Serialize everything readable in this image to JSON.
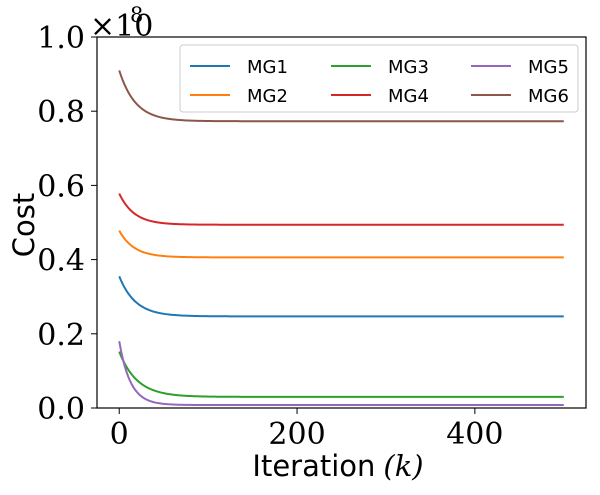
{
  "chart_data": {
    "type": "line",
    "xlabel": "Iteration",
    "xlabel_math": "(k)",
    "ylabel": "Cost",
    "y_multiplier": "×10",
    "y_multiplier_exponent": "8",
    "xlim": [
      -25,
      525
    ],
    "ylim": [
      0.0,
      1.0
    ],
    "x_ticks": [
      0,
      200,
      400
    ],
    "x_tick_labels": [
      "0",
      "200",
      "400"
    ],
    "y_ticks": [
      0.0,
      0.2,
      0.4,
      0.6,
      0.8,
      1.0
    ],
    "y_tick_labels": [
      "0.0",
      "0.2",
      "0.4",
      "0.6",
      "0.8",
      "1.0"
    ],
    "legend_position": "top-right",
    "series": [
      {
        "name": "MG1",
        "color": "#1f77b4",
        "start": 0.355,
        "final": 0.247,
        "rate": 0.055
      },
      {
        "name": "MG2",
        "color": "#ff7f0e",
        "start": 0.478,
        "final": 0.406,
        "rate": 0.06
      },
      {
        "name": "MG3",
        "color": "#2ca02c",
        "start": 0.152,
        "final": 0.03,
        "rate": 0.05
      },
      {
        "name": "MG4",
        "color": "#d62728",
        "start": 0.578,
        "final": 0.494,
        "rate": 0.06
      },
      {
        "name": "MG5",
        "color": "#9467bd",
        "start": 0.18,
        "final": 0.008,
        "rate": 0.08
      },
      {
        "name": "MG6",
        "color": "#8c564b",
        "start": 0.91,
        "final": 0.773,
        "rate": 0.055
      }
    ],
    "x_range": [
      0,
      500
    ]
  }
}
